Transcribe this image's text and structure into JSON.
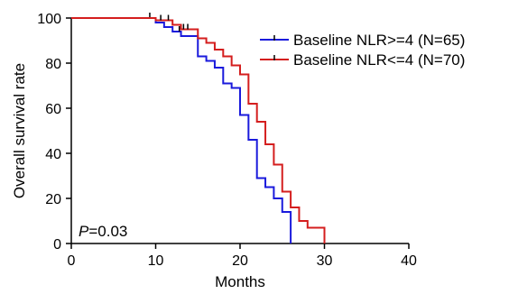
{
  "chart_data": {
    "type": "line",
    "title": "",
    "xlabel": "Months",
    "ylabel": "Overall survival rate",
    "xlim": [
      0,
      40
    ],
    "ylim": [
      0,
      100
    ],
    "xticks": [
      "0",
      "10",
      "20",
      "30",
      "40"
    ],
    "yticks": [
      "0",
      "20",
      "40",
      "60",
      "80",
      "100"
    ],
    "grid": false,
    "legend_position": "top-right",
    "annotation": {
      "italic": "P",
      "rest": "=0.03"
    },
    "series": [
      {
        "name": "Baseline NLR>=4 (N=65)",
        "color": "#1a1adc",
        "step": true,
        "points": [
          [
            0,
            100
          ],
          [
            10,
            100
          ],
          [
            10,
            98
          ],
          [
            11,
            98
          ],
          [
            11,
            96
          ],
          [
            12,
            96
          ],
          [
            12,
            94
          ],
          [
            13,
            94
          ],
          [
            13,
            92
          ],
          [
            15,
            92
          ],
          [
            15,
            83
          ],
          [
            16,
            83
          ],
          [
            16,
            81
          ],
          [
            17,
            81
          ],
          [
            17,
            78
          ],
          [
            18,
            78
          ],
          [
            18,
            71
          ],
          [
            19,
            71
          ],
          [
            19,
            69
          ],
          [
            20,
            69
          ],
          [
            20,
            57
          ],
          [
            21,
            57
          ],
          [
            21,
            46
          ],
          [
            22,
            46
          ],
          [
            22,
            29
          ],
          [
            23,
            29
          ],
          [
            23,
            25
          ],
          [
            24,
            25
          ],
          [
            24,
            20
          ],
          [
            25,
            20
          ],
          [
            25,
            14
          ],
          [
            26,
            14
          ],
          [
            26,
            0
          ]
        ],
        "censor_x": [
          9.3,
          12.8
        ]
      },
      {
        "name": "Baseline NLR<=4 (N=70)",
        "color": "#d41e1e",
        "step": true,
        "points": [
          [
            0,
            100
          ],
          [
            10,
            100
          ],
          [
            10,
            99
          ],
          [
            12,
            99
          ],
          [
            12,
            97
          ],
          [
            13,
            97
          ],
          [
            13,
            95
          ],
          [
            15,
            95
          ],
          [
            15,
            91
          ],
          [
            16,
            91
          ],
          [
            16,
            89
          ],
          [
            17,
            89
          ],
          [
            17,
            86
          ],
          [
            18,
            86
          ],
          [
            18,
            83
          ],
          [
            19,
            83
          ],
          [
            19,
            79
          ],
          [
            20,
            79
          ],
          [
            20,
            75
          ],
          [
            21,
            75
          ],
          [
            21,
            62
          ],
          [
            22,
            62
          ],
          [
            22,
            54
          ],
          [
            23,
            54
          ],
          [
            23,
            44
          ],
          [
            24,
            44
          ],
          [
            24,
            35
          ],
          [
            25,
            35
          ],
          [
            25,
            23
          ],
          [
            26,
            23
          ],
          [
            26,
            16
          ],
          [
            27,
            16
          ],
          [
            27,
            10
          ],
          [
            28,
            10
          ],
          [
            28,
            7
          ],
          [
            30,
            7
          ],
          [
            30,
            0
          ]
        ],
        "censor_x": [
          10.6,
          11.5,
          13.3,
          13.8
        ]
      }
    ]
  }
}
